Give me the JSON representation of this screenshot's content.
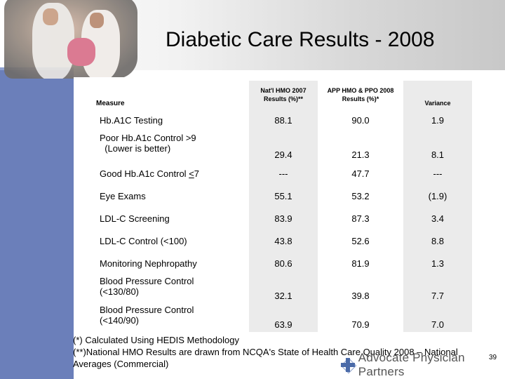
{
  "title": "Diabetic Care Results - 2008",
  "table": {
    "headers": {
      "measure": "Measure",
      "col1": "Nat'l HMO 2007 Results (%)**",
      "col2": "APP HMO & PPO 2008 Results (%)*",
      "col3": "Variance"
    },
    "rows": [
      {
        "label": "Hb.A1C Testing",
        "nat": "88.1",
        "app": "90.0",
        "var": "1.9"
      },
      {
        "label": "Poor Hb.A1c Control >9\n  (Lower is better)",
        "nat": "29.4",
        "app": "21.3",
        "var": "8.1"
      },
      {
        "label_pre": "Good Hb.A1c Control ",
        "label_u": "<",
        "label_post": "7",
        "nat": "---",
        "app": "47.7",
        "var": "---"
      },
      {
        "label": "Eye Exams",
        "nat": "55.1",
        "app": "53.2",
        "var": "(1.9)"
      },
      {
        "label": "LDL-C Screening",
        "nat": "83.9",
        "app": "87.3",
        "var": "3.4"
      },
      {
        "label": "LDL-C Control (<100)",
        "nat": "43.8",
        "app": "52.6",
        "var": "8.8"
      },
      {
        "label": "Monitoring Nephropathy",
        "nat": "80.6",
        "app": "81.9",
        "var": "1.3"
      },
      {
        "label": "Blood Pressure Control\n(<130/80)",
        "nat": "32.1",
        "app": "39.8",
        "var": "7.7"
      },
      {
        "label": "Blood Pressure Control\n(<140/90)",
        "nat": "63.9",
        "app": "70.9",
        "var": "7.0"
      }
    ]
  },
  "footnotes": {
    "line1": "(*) Calculated Using HEDIS Methodology",
    "line2": "(**)National HMO Results are drawn from NCQA's State of Health Care Quality 2008 – National Averages (Commercial)"
  },
  "logo": {
    "text": "Advocate Physician Partners",
    "icon": "advocate-cross-icon"
  },
  "page_number": "39",
  "colors": {
    "left_bar": "#6b7fba",
    "shaded_column": "#ebebeb"
  }
}
